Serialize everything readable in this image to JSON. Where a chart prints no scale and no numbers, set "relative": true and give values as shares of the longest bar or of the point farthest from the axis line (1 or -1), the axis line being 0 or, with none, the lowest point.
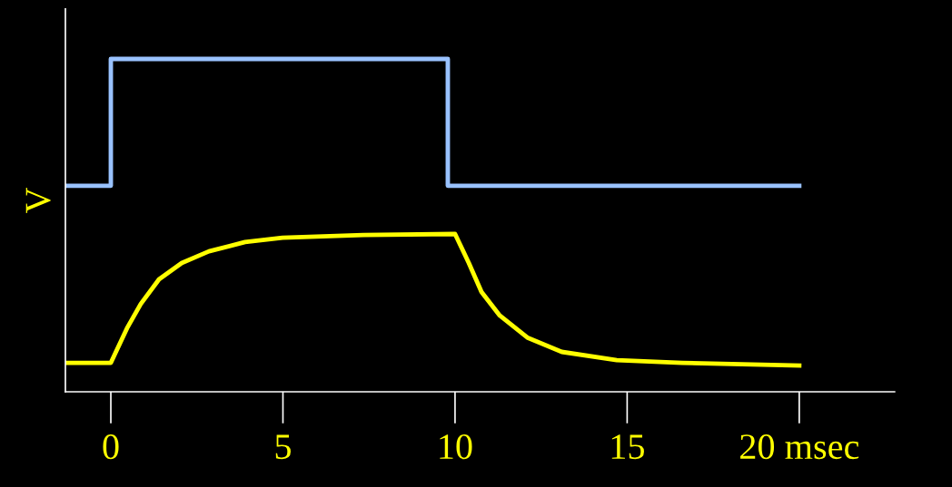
{
  "chart_data": {
    "type": "line",
    "relative": true,
    "ylabel": "V",
    "xlim": [
      -1.32,
      22.77
    ],
    "xticks": [
      0,
      5,
      10,
      15,
      {
        "value": 20,
        "label": "20 msec"
      }
    ],
    "tick_labels": "x",
    "grid": false,
    "legend": false,
    "marker": "none",
    "line_style": "solid",
    "series": [
      {
        "color": "#99c2ff",
        "x": [
          -1.32,
          0,
          0,
          9.79,
          9.79,
          20
        ],
        "values": [
          0.619,
          0.619,
          1,
          1,
          0.619,
          0.619
        ]
      },
      {
        "color": "#ffff00",
        "x": [
          -1.32,
          0,
          0.47,
          0.87,
          1.4,
          2.06,
          2.85,
          3.9,
          4.99,
          7.34,
          10,
          10.4,
          10.77,
          11.3,
          12.1,
          13.1,
          14.7,
          16.6,
          20
        ],
        "values": [
          0.087,
          0.087,
          0.191,
          0.264,
          0.338,
          0.387,
          0.422,
          0.45,
          0.463,
          0.471,
          0.474,
          0.387,
          0.3,
          0.229,
          0.163,
          0.12,
          0.095,
          0.087,
          0.079
        ]
      }
    ]
  }
}
